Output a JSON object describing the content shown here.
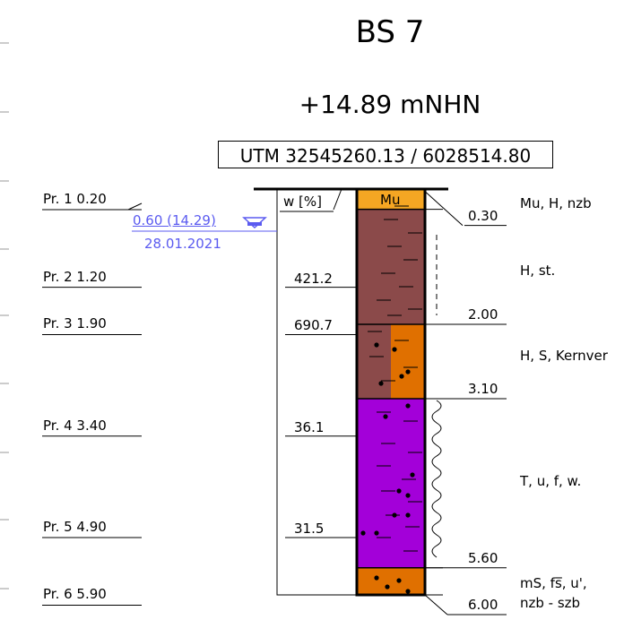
{
  "borehole": {
    "name": "BS 7",
    "elevation": "+14.89 mNHN",
    "utm": "UTM 32545260.13 / 6028514.80"
  },
  "groundwater": {
    "level": "0.60 (14.29)",
    "date": "28.01.2021",
    "color": "#5b5bf0"
  },
  "water_content_header": "w [%]",
  "samples": [
    {
      "label": "Pr. 1  0.20",
      "depth": 0.2
    },
    {
      "label": "Pr. 2  1.20",
      "depth": 1.2
    },
    {
      "label": "Pr. 3  1.90",
      "depth": 1.9
    },
    {
      "label": "Pr. 4  3.40",
      "depth": 3.4
    },
    {
      "label": "Pr. 5  4.90",
      "depth": 4.9
    },
    {
      "label": "Pr. 6  5.90",
      "depth": 5.9
    }
  ],
  "water_contents": [
    {
      "value": "421.2",
      "depth": 1.2
    },
    {
      "value": "690.7",
      "depth": 1.9
    },
    {
      "value": "36.1",
      "depth": 3.4
    },
    {
      "value": "31.5",
      "depth": 4.9
    }
  ],
  "layers": [
    {
      "top": 0.0,
      "bottom": 0.3,
      "bottom_label": "0.30",
      "description": "Mu, H, nzb",
      "symbol": "Mu",
      "color": "#f5a623"
    },
    {
      "top": 0.3,
      "bottom": 2.0,
      "bottom_label": "2.00",
      "description": "H, st.",
      "color": "#8b4a4a"
    },
    {
      "top": 2.0,
      "bottom": 3.1,
      "bottom_label": "3.10",
      "description": "H, S, Kernver",
      "color": "#8b4a4a",
      "color2": "#e07000"
    },
    {
      "top": 3.1,
      "bottom": 5.6,
      "bottom_label": "5.60",
      "description": "T, u, f, w.",
      "color": "#a300d9"
    },
    {
      "top": 5.6,
      "bottom": 6.0,
      "bottom_label": "6.00",
      "description_lines": [
        "mS, fs̅, u',",
        "nzb - szb"
      ],
      "color": "#e07000"
    }
  ]
}
